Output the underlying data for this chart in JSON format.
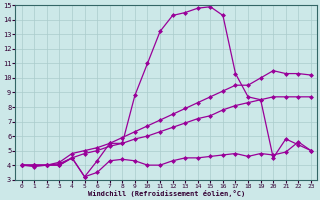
{
  "xlabel": "Windchill (Refroidissement éolien,°C)",
  "background_color": "#cce8e8",
  "grid_color": "#aacccc",
  "line_color": "#990099",
  "x_ticks": [
    0,
    1,
    2,
    3,
    4,
    5,
    6,
    7,
    8,
    9,
    10,
    11,
    12,
    13,
    14,
    15,
    16,
    17,
    18,
    19,
    20,
    21,
    22,
    23
  ],
  "y_ticks": [
    3,
    4,
    5,
    6,
    7,
    8,
    9,
    10,
    11,
    12,
    13,
    14,
    15
  ],
  "ylim": [
    3,
    15
  ],
  "xlim": [
    -0.5,
    23.5
  ],
  "curve1_x": [
    0,
    1,
    2,
    3,
    4,
    5,
    6,
    7,
    8,
    9,
    10,
    11,
    12,
    13,
    14,
    15,
    16,
    17,
    18,
    19,
    20,
    21,
    22,
    23
  ],
  "curve1_y": [
    4.0,
    3.9,
    4.0,
    4.0,
    4.5,
    3.2,
    3.5,
    4.3,
    4.4,
    4.3,
    4.0,
    4.0,
    4.3,
    4.5,
    4.5,
    4.6,
    4.7,
    4.8,
    4.6,
    4.8,
    4.7,
    4.9,
    5.6,
    5.0
  ],
  "curve2_x": [
    0,
    1,
    2,
    3,
    4,
    5,
    6,
    7,
    8,
    9,
    10,
    11,
    12,
    13,
    14,
    15,
    16,
    17,
    18,
    19,
    20,
    21,
    22,
    23
  ],
  "curve2_y": [
    4.0,
    4.0,
    4.0,
    4.1,
    4.5,
    4.8,
    5.0,
    5.3,
    5.5,
    5.8,
    6.0,
    6.3,
    6.6,
    6.9,
    7.2,
    7.4,
    7.8,
    8.1,
    8.3,
    8.5,
    8.7,
    8.7,
    8.7,
    8.7
  ],
  "curve3_x": [
    0,
    1,
    2,
    3,
    4,
    5,
    6,
    7,
    8,
    9,
    10,
    11,
    12,
    13,
    14,
    15,
    16,
    17,
    18,
    19,
    20,
    21,
    22,
    23
  ],
  "curve3_y": [
    4.0,
    4.0,
    4.0,
    4.2,
    4.8,
    5.0,
    5.2,
    5.5,
    5.9,
    6.3,
    6.7,
    7.1,
    7.5,
    7.9,
    8.3,
    8.7,
    9.1,
    9.5,
    9.5,
    10.0,
    10.5,
    10.3,
    10.3,
    10.2
  ],
  "curve4_x": [
    0,
    1,
    2,
    3,
    4,
    5,
    6,
    7,
    8,
    9,
    10,
    11,
    12,
    13,
    14,
    15,
    16,
    17,
    18,
    19,
    20,
    21,
    22,
    23
  ],
  "curve4_y": [
    4.0,
    4.0,
    4.0,
    4.0,
    4.5,
    3.2,
    4.3,
    5.5,
    5.5,
    8.8,
    11.0,
    13.2,
    14.3,
    14.5,
    14.8,
    14.9,
    14.3,
    10.3,
    8.7,
    8.5,
    4.5,
    5.8,
    5.4,
    5.0
  ],
  "marker": "D",
  "markersize": 2.0,
  "linewidth": 0.9
}
